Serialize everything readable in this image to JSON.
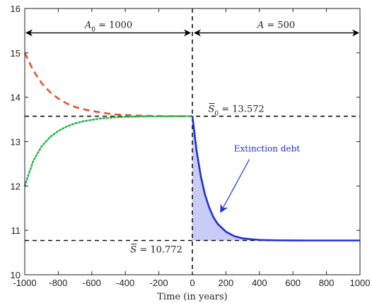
{
  "chart_data": {
    "type": "line",
    "xlabel": "Time (in years)",
    "ylabel": "",
    "xlim": [
      -1000,
      1000
    ],
    "ylim": [
      10,
      16
    ],
    "xticks": [
      -1000,
      -800,
      -600,
      -400,
      -200,
      0,
      200,
      400,
      600,
      800,
      1000
    ],
    "xtick_labels": [
      "-1000",
      "-800",
      "-600",
      "-400",
      "-200",
      "0",
      "200",
      "400",
      "600",
      "800",
      "1000"
    ],
    "yticks": [
      10,
      11,
      12,
      13,
      14,
      15,
      16
    ],
    "ytick_labels": [
      "10",
      "11",
      "12",
      "13",
      "14",
      "15",
      "16"
    ],
    "grid": false,
    "series": [
      {
        "color": "#e8502f",
        "dash": "dashed",
        "x": [
          -1000,
          -950,
          -900,
          -850,
          -800,
          -750,
          -700,
          -650,
          -600,
          -550,
          -500,
          -450,
          -400,
          -350,
          -300,
          -250,
          -200,
          -150,
          -100,
          -50,
          0
        ],
        "y": [
          15.0,
          14.61,
          14.32,
          14.12,
          13.97,
          13.86,
          13.78,
          13.73,
          13.69,
          13.66,
          13.63,
          13.61,
          13.6,
          13.59,
          13.585,
          13.58,
          13.576,
          13.574,
          13.573,
          13.572,
          13.572
        ]
      },
      {
        "color": "#2db84a",
        "dash": "dotted",
        "x": [
          -1000,
          -950,
          -900,
          -850,
          -800,
          -750,
          -700,
          -650,
          -600,
          -550,
          -500,
          -450,
          -400,
          -350,
          -300,
          -250,
          -200,
          -150,
          -100,
          -50,
          0
        ],
        "y": [
          12.0,
          12.56,
          12.89,
          13.1,
          13.24,
          13.34,
          13.41,
          13.46,
          13.49,
          13.52,
          13.535,
          13.55,
          13.557,
          13.562,
          13.566,
          13.568,
          13.57,
          13.571,
          13.571,
          13.572,
          13.572
        ]
      },
      {
        "color": "#1f2fd8",
        "dash": "solid",
        "x": [
          0,
          25,
          50,
          75,
          100,
          125,
          150,
          200,
          250,
          300,
          350,
          400,
          450,
          500,
          600,
          700,
          800,
          900,
          1000
        ],
        "y": [
          13.572,
          12.8,
          12.23,
          11.81,
          11.52,
          11.3,
          11.15,
          10.97,
          10.87,
          10.82,
          10.8,
          10.785,
          10.779,
          10.776,
          10.773,
          10.772,
          10.772,
          10.772,
          10.772
        ]
      }
    ],
    "reference_lines": {
      "upper_y": 13.572,
      "lower_y": 10.772,
      "vertical_x": 0
    },
    "annotations": {
      "left_span": "A_0 = 1000",
      "right_span": "A = 500",
      "upper_label": "S̄_0 = 13.572",
      "lower_label": "S̄ = 10.772",
      "debt_label": "Extinction debt"
    },
    "fill_color": "#c9ccf6",
    "accent_blue": "#1f2fd8"
  }
}
